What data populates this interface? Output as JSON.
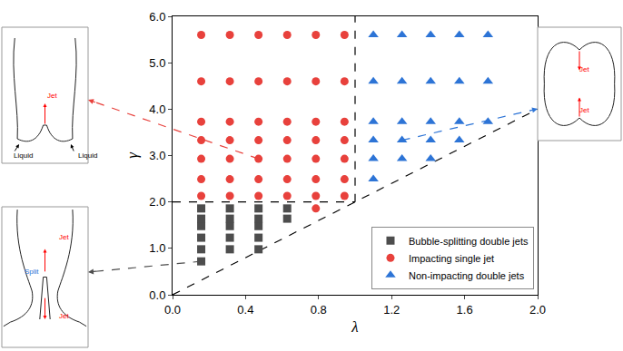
{
  "chart_data": {
    "type": "scatter",
    "x_label": "λ",
    "y_label": "γ",
    "xlim": [
      0,
      2
    ],
    "xticks": [
      {
        "value": 0,
        "label": "0.0"
      },
      {
        "value": 0.4,
        "label": "0.4"
      },
      {
        "value": 0.8,
        "label": "0.8"
      },
      {
        "value": 1.2,
        "label": "1.2"
      },
      {
        "value": 1.6,
        "label": "1.6"
      },
      {
        "value": 2,
        "label": "2.0"
      }
    ],
    "ylim": [
      0,
      6
    ],
    "yticks": [
      {
        "value": 0,
        "label": "0.0"
      },
      {
        "value": 1,
        "label": "1.0"
      },
      {
        "value": 2,
        "label": "2.0"
      },
      {
        "value": 3,
        "label": "3.0"
      },
      {
        "value": 4,
        "label": "4.0"
      },
      {
        "value": 5,
        "label": "5.0"
      },
      {
        "value": 6,
        "label": "6.0"
      }
    ],
    "legend": "lower right",
    "series": [
      {
        "name": "Bubble-splitting double jets",
        "color": "#4d4d4d",
        "marker": "square",
        "x": [
          0.157,
          0.157,
          0.157,
          0.157,
          0.157,
          0.157,
          0.314,
          0.314,
          0.314,
          0.314,
          0.314,
          0.471,
          0.471,
          0.471,
          0.471,
          0.471,
          0.628,
          0.628
        ],
        "y": [
          0.72,
          0.98,
          1.23,
          1.48,
          1.64,
          1.86,
          0.98,
          1.23,
          1.48,
          1.64,
          1.86,
          0.98,
          1.23,
          1.48,
          1.64,
          1.86,
          1.64,
          1.86
        ]
      },
      {
        "name": "Impacting single jet",
        "color": "#e8413c",
        "marker": "circle",
        "x": [
          0.785,
          0.157,
          0.314,
          0.471,
          0.628,
          0.785,
          0.942,
          0.157,
          0.314,
          0.471,
          0.628,
          0.785,
          0.942,
          0.157,
          0.314,
          0.471,
          0.628,
          0.785,
          0.942,
          0.157,
          0.314,
          0.471,
          0.628,
          0.785,
          0.942,
          0.157,
          0.314,
          0.471,
          0.628,
          0.785,
          0.942,
          0.157,
          0.314,
          0.471,
          0.628,
          0.785,
          0.942,
          0.157,
          0.314,
          0.471,
          0.628,
          0.785,
          0.942
        ],
        "y": [
          1.86,
          2.13,
          2.13,
          2.13,
          2.13,
          2.13,
          2.13,
          2.49,
          2.49,
          2.49,
          2.49,
          2.49,
          2.49,
          2.93,
          2.93,
          2.93,
          2.93,
          2.93,
          2.93,
          3.33,
          3.33,
          3.33,
          3.33,
          3.33,
          3.33,
          3.73,
          3.73,
          3.73,
          3.73,
          3.73,
          3.73,
          4.6,
          4.6,
          4.6,
          4.6,
          4.6,
          4.6,
          5.6,
          5.6,
          5.6,
          5.6,
          5.6,
          5.6
        ]
      },
      {
        "name": "Non-impacting double jets",
        "color": "#2d74d6",
        "marker": "triangle-up",
        "x": [
          1.1,
          1.1,
          1.257,
          1.414,
          1.1,
          1.257,
          1.414,
          1.571,
          1.1,
          1.257,
          1.414,
          1.571,
          1.728,
          1.1,
          1.257,
          1.414,
          1.571,
          1.728,
          1.1,
          1.257,
          1.414,
          1.571,
          1.728
        ],
        "y": [
          2.49,
          2.93,
          2.93,
          2.93,
          3.33,
          3.33,
          3.33,
          3.33,
          3.73,
          3.73,
          3.73,
          3.73,
          3.73,
          4.6,
          4.6,
          4.6,
          4.6,
          4.6,
          5.6,
          5.6,
          5.6,
          5.6,
          5.6
        ]
      }
    ],
    "boundaries": [
      {
        "x": [
          0,
          1
        ],
        "y": [
          2,
          2
        ]
      },
      {
        "x": [
          1,
          1
        ],
        "y": [
          2,
          6
        ]
      },
      {
        "x": [
          0,
          2
        ],
        "y": [
          0,
          4
        ]
      }
    ],
    "insets": [
      {
        "series": "Impacting single jet",
        "source": [
          0.471,
          2.93
        ],
        "labels": [
          "Jet",
          "Liquid",
          "Liquid"
        ]
      },
      {
        "series": "Non-impacting double jets",
        "source": [
          1.257,
          3.33
        ],
        "labels": [
          "Jet",
          "Jet"
        ]
      },
      {
        "series": "Bubble-splitting double jets",
        "source": [
          0.157,
          0.72
        ],
        "labels": [
          "Jet",
          "Jet",
          "Split"
        ]
      }
    ]
  }
}
